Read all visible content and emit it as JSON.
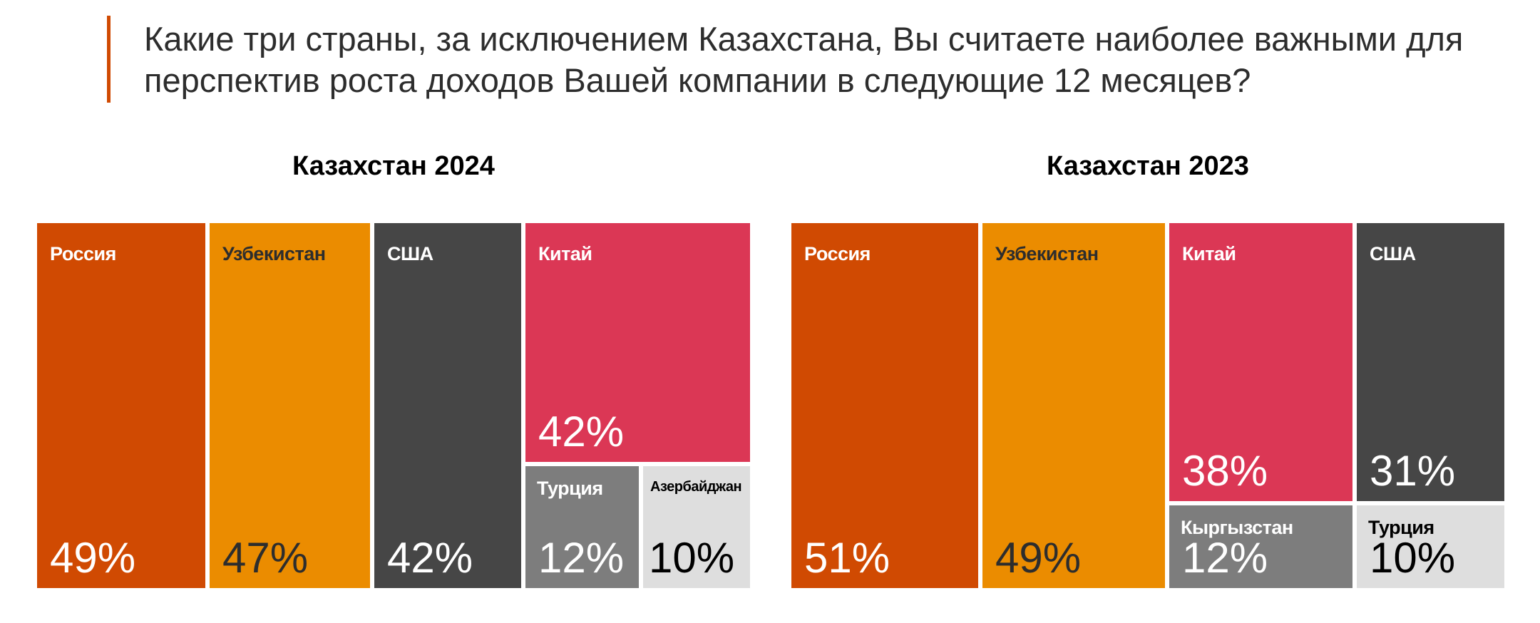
{
  "header": {
    "question": "Какие три страны, за исключением Казахстана, Вы считаете наиболее важными для перспектив роста доходов Вашей компании в следующие 12 месяцев?"
  },
  "colors": {
    "accent": "#d04a02",
    "Россия": "#d04a02",
    "Узбекистан": "#eb8c00",
    "США": "#464646",
    "Китай": "#db3755",
    "Турция_2024": "#7d7d7d",
    "Азербайджан": "#dedede",
    "Кыргызстан": "#7d7d7d",
    "Турция_2023": "#dedede"
  },
  "chart_data": [
    {
      "type": "treemap",
      "title": "Казахстан 2024",
      "categories": [
        "Россия",
        "Узбекистан",
        "США",
        "Китай",
        "Турция",
        "Азербайджан"
      ],
      "values": [
        49,
        47,
        42,
        42,
        12,
        10
      ],
      "value_labels": [
        "49%",
        "47%",
        "42%",
        "42%",
        "12%",
        "10%"
      ]
    },
    {
      "type": "treemap",
      "title": "Казахстан 2023",
      "categories": [
        "Россия",
        "Узбекистан",
        "Китай",
        "США",
        "Кыргызстан",
        "Турция"
      ],
      "values": [
        51,
        49,
        38,
        31,
        12,
        10
      ],
      "value_labels": [
        "51%",
        "49%",
        "38%",
        "31%",
        "12%",
        "10%"
      ]
    }
  ]
}
